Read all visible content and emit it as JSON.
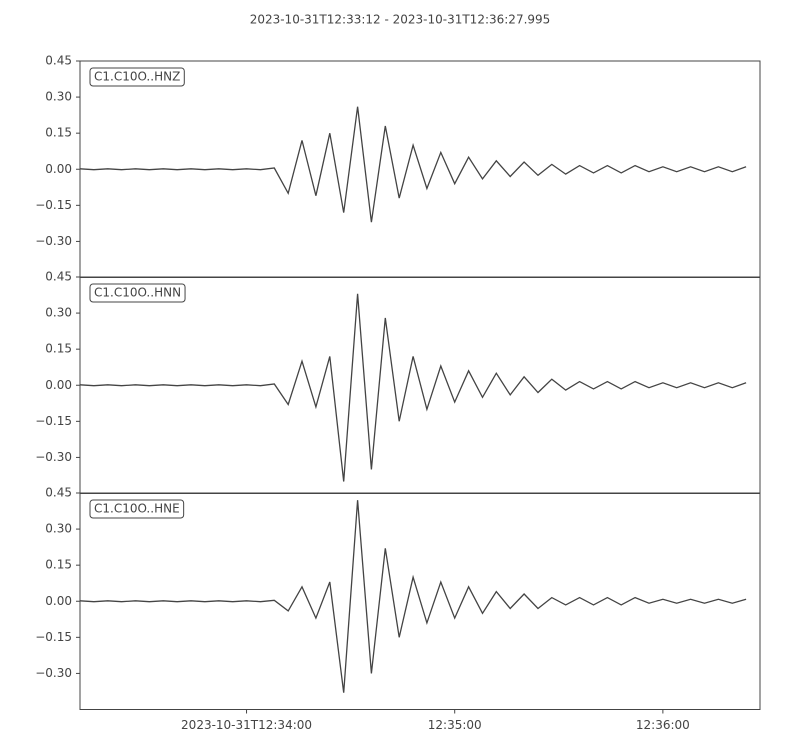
{
  "title": "2023-10-31T12:33:12  -  2023-10-31T12:36:27.995",
  "chart_data": [
    {
      "type": "line",
      "series": [
        {
          "name": "C1.C10O..HNZ",
          "color": "#444444",
          "values": [
            0.002,
            -0.002,
            0.002,
            -0.002,
            0.002,
            -0.002,
            0.002,
            -0.002,
            0.002,
            -0.002,
            0.002,
            -0.002,
            0.002,
            -0.002,
            0.005,
            -0.1,
            0.12,
            -0.11,
            0.15,
            -0.18,
            0.26,
            -0.22,
            0.18,
            -0.12,
            0.1,
            -0.08,
            0.07,
            -0.06,
            0.05,
            -0.04,
            0.035,
            -0.03,
            0.03,
            -0.025,
            0.02,
            -0.02,
            0.015,
            -0.015,
            0.015,
            -0.015,
            0.015,
            -0.01,
            0.01,
            -0.01,
            0.01,
            -0.01,
            0.01,
            -0.01,
            0.01
          ]
        }
      ],
      "x": [
        "2023-10-31T12:33:12",
        "2023-10-31T12:33:16",
        "2023-10-31T12:33:20",
        "2023-10-31T12:33:24",
        "2023-10-31T12:33:28",
        "2023-10-31T12:33:32",
        "2023-10-31T12:33:36",
        "2023-10-31T12:33:40",
        "2023-10-31T12:33:44",
        "2023-10-31T12:33:48",
        "2023-10-31T12:33:52",
        "2023-10-31T12:33:56",
        "2023-10-31T12:34:00",
        "2023-10-31T12:34:04",
        "2023-10-31T12:34:08",
        "2023-10-31T12:34:12",
        "2023-10-31T12:34:16",
        "2023-10-31T12:34:20",
        "2023-10-31T12:34:24",
        "2023-10-31T12:34:28",
        "2023-10-31T12:34:32",
        "2023-10-31T12:34:36",
        "2023-10-31T12:34:40",
        "2023-10-31T12:34:44",
        "2023-10-31T12:34:48",
        "2023-10-31T12:34:52",
        "2023-10-31T12:34:56",
        "2023-10-31T12:35:00",
        "2023-10-31T12:35:04",
        "2023-10-31T12:35:08",
        "2023-10-31T12:35:12",
        "2023-10-31T12:35:16",
        "2023-10-31T12:35:20",
        "2023-10-31T12:35:24",
        "2023-10-31T12:35:28",
        "2023-10-31T12:35:32",
        "2023-10-31T12:35:36",
        "2023-10-31T12:35:40",
        "2023-10-31T12:35:44",
        "2023-10-31T12:35:48",
        "2023-10-31T12:35:52",
        "2023-10-31T12:35:56",
        "2023-10-31T12:36:00",
        "2023-10-31T12:36:04",
        "2023-10-31T12:36:08",
        "2023-10-31T12:36:12",
        "2023-10-31T12:36:16",
        "2023-10-31T12:36:20",
        "2023-10-31T12:36:24"
      ],
      "xlim": [
        "2023-10-31T12:33:12",
        "2023-10-31T12:36:27.995"
      ],
      "ylim": [
        -0.45,
        0.45
      ],
      "yticks": [
        {
          "value": -0.3,
          "label": "−0.30"
        },
        {
          "value": -0.15,
          "label": "−0.15"
        },
        {
          "value": 0,
          "label": "0.00"
        },
        {
          "value": 0.15,
          "label": "0.15"
        },
        {
          "value": 0.3,
          "label": "0.30"
        },
        {
          "value": 0.45,
          "label": "0.45"
        }
      ]
    },
    {
      "type": "line",
      "series": [
        {
          "name": "C1.C10O..HNN",
          "color": "#444444",
          "values": [
            0.002,
            -0.002,
            0.002,
            -0.002,
            0.002,
            -0.002,
            0.002,
            -0.002,
            0.002,
            -0.002,
            0.002,
            -0.002,
            0.002,
            -0.002,
            0.005,
            -0.08,
            0.1,
            -0.09,
            0.12,
            -0.4,
            0.38,
            -0.35,
            0.28,
            -0.15,
            0.12,
            -0.1,
            0.08,
            -0.07,
            0.06,
            -0.05,
            0.05,
            -0.04,
            0.035,
            -0.03,
            0.025,
            -0.02,
            0.015,
            -0.015,
            0.015,
            -0.015,
            0.015,
            -0.01,
            0.01,
            -0.01,
            0.01,
            -0.01,
            0.01,
            -0.01,
            0.01
          ]
        }
      ],
      "x": [
        "2023-10-31T12:33:12",
        "2023-10-31T12:33:16",
        "2023-10-31T12:33:20",
        "2023-10-31T12:33:24",
        "2023-10-31T12:33:28",
        "2023-10-31T12:33:32",
        "2023-10-31T12:33:36",
        "2023-10-31T12:33:40",
        "2023-10-31T12:33:44",
        "2023-10-31T12:33:48",
        "2023-10-31T12:33:52",
        "2023-10-31T12:33:56",
        "2023-10-31T12:34:00",
        "2023-10-31T12:34:04",
        "2023-10-31T12:34:08",
        "2023-10-31T12:34:12",
        "2023-10-31T12:34:16",
        "2023-10-31T12:34:20",
        "2023-10-31T12:34:24",
        "2023-10-31T12:34:28",
        "2023-10-31T12:34:32",
        "2023-10-31T12:34:36",
        "2023-10-31T12:34:40",
        "2023-10-31T12:34:44",
        "2023-10-31T12:34:48",
        "2023-10-31T12:34:52",
        "2023-10-31T12:34:56",
        "2023-10-31T12:35:00",
        "2023-10-31T12:35:04",
        "2023-10-31T12:35:08",
        "2023-10-31T12:35:12",
        "2023-10-31T12:35:16",
        "2023-10-31T12:35:20",
        "2023-10-31T12:35:24",
        "2023-10-31T12:35:28",
        "2023-10-31T12:35:32",
        "2023-10-31T12:35:36",
        "2023-10-31T12:35:40",
        "2023-10-31T12:35:44",
        "2023-10-31T12:35:48",
        "2023-10-31T12:35:52",
        "2023-10-31T12:35:56",
        "2023-10-31T12:36:00",
        "2023-10-31T12:36:04",
        "2023-10-31T12:36:08",
        "2023-10-31T12:36:12",
        "2023-10-31T12:36:16",
        "2023-10-31T12:36:20",
        "2023-10-31T12:36:24"
      ],
      "xlim": [
        "2023-10-31T12:33:12",
        "2023-10-31T12:36:27.995"
      ],
      "ylim": [
        -0.45,
        0.45
      ],
      "yticks": [
        {
          "value": -0.3,
          "label": "−0.30"
        },
        {
          "value": -0.15,
          "label": "−0.15"
        },
        {
          "value": 0,
          "label": "0.00"
        },
        {
          "value": 0.15,
          "label": "0.15"
        },
        {
          "value": 0.3,
          "label": "0.30"
        },
        {
          "value": 0.45,
          "label": "0.45"
        }
      ]
    },
    {
      "type": "line",
      "series": [
        {
          "name": "C1.C10O..HNE",
          "color": "#444444",
          "values": [
            0.002,
            -0.002,
            0.002,
            -0.002,
            0.002,
            -0.002,
            0.002,
            -0.002,
            0.002,
            -0.002,
            0.002,
            -0.002,
            0.002,
            -0.002,
            0.004,
            -0.04,
            0.06,
            -0.07,
            0.08,
            -0.38,
            0.42,
            -0.3,
            0.22,
            -0.15,
            0.1,
            -0.09,
            0.08,
            -0.07,
            0.06,
            -0.05,
            0.04,
            -0.03,
            0.03,
            -0.03,
            0.015,
            -0.015,
            0.015,
            -0.015,
            0.015,
            -0.015,
            0.015,
            -0.008,
            0.008,
            -0.008,
            0.008,
            -0.008,
            0.008,
            -0.008,
            0.008
          ]
        }
      ],
      "x": [
        "2023-10-31T12:33:12",
        "2023-10-31T12:33:16",
        "2023-10-31T12:33:20",
        "2023-10-31T12:33:24",
        "2023-10-31T12:33:28",
        "2023-10-31T12:33:32",
        "2023-10-31T12:33:36",
        "2023-10-31T12:33:40",
        "2023-10-31T12:33:44",
        "2023-10-31T12:33:48",
        "2023-10-31T12:33:52",
        "2023-10-31T12:33:56",
        "2023-10-31T12:34:00",
        "2023-10-31T12:34:04",
        "2023-10-31T12:34:08",
        "2023-10-31T12:34:12",
        "2023-10-31T12:34:16",
        "2023-10-31T12:34:20",
        "2023-10-31T12:34:24",
        "2023-10-31T12:34:28",
        "2023-10-31T12:34:32",
        "2023-10-31T12:34:36",
        "2023-10-31T12:34:40",
        "2023-10-31T12:34:44",
        "2023-10-31T12:34:48",
        "2023-10-31T12:34:52",
        "2023-10-31T12:34:56",
        "2023-10-31T12:35:00",
        "2023-10-31T12:35:04",
        "2023-10-31T12:35:08",
        "2023-10-31T12:35:12",
        "2023-10-31T12:35:16",
        "2023-10-31T12:35:20",
        "2023-10-31T12:35:24",
        "2023-10-31T12:35:28",
        "2023-10-31T12:35:32",
        "2023-10-31T12:35:36",
        "2023-10-31T12:35:40",
        "2023-10-31T12:35:44",
        "2023-10-31T12:35:48",
        "2023-10-31T12:35:52",
        "2023-10-31T12:35:56",
        "2023-10-31T12:36:00",
        "2023-10-31T12:36:04",
        "2023-10-31T12:36:08",
        "2023-10-31T12:36:12",
        "2023-10-31T12:36:16",
        "2023-10-31T12:36:20",
        "2023-10-31T12:36:24"
      ],
      "xlim": [
        "2023-10-31T12:33:12",
        "2023-10-31T12:36:27.995"
      ],
      "xticks": [
        "2023-10-31T12:34:00",
        {
          "value": "2023-10-31T12:35:00",
          "label": "12:35:00"
        },
        {
          "value": "2023-10-31T12:36:00",
          "label": "12:36:00"
        }
      ],
      "ylim": [
        -0.45,
        0.45
      ],
      "yticks": [
        {
          "value": -0.3,
          "label": "−0.30"
        },
        {
          "value": -0.15,
          "label": "−0.15"
        },
        {
          "value": 0,
          "label": "0.00"
        },
        {
          "value": 0.15,
          "label": "0.15"
        },
        {
          "value": 0.3,
          "label": "0.30"
        },
        {
          "value": 0.45,
          "label": "0.45"
        }
      ]
    }
  ]
}
